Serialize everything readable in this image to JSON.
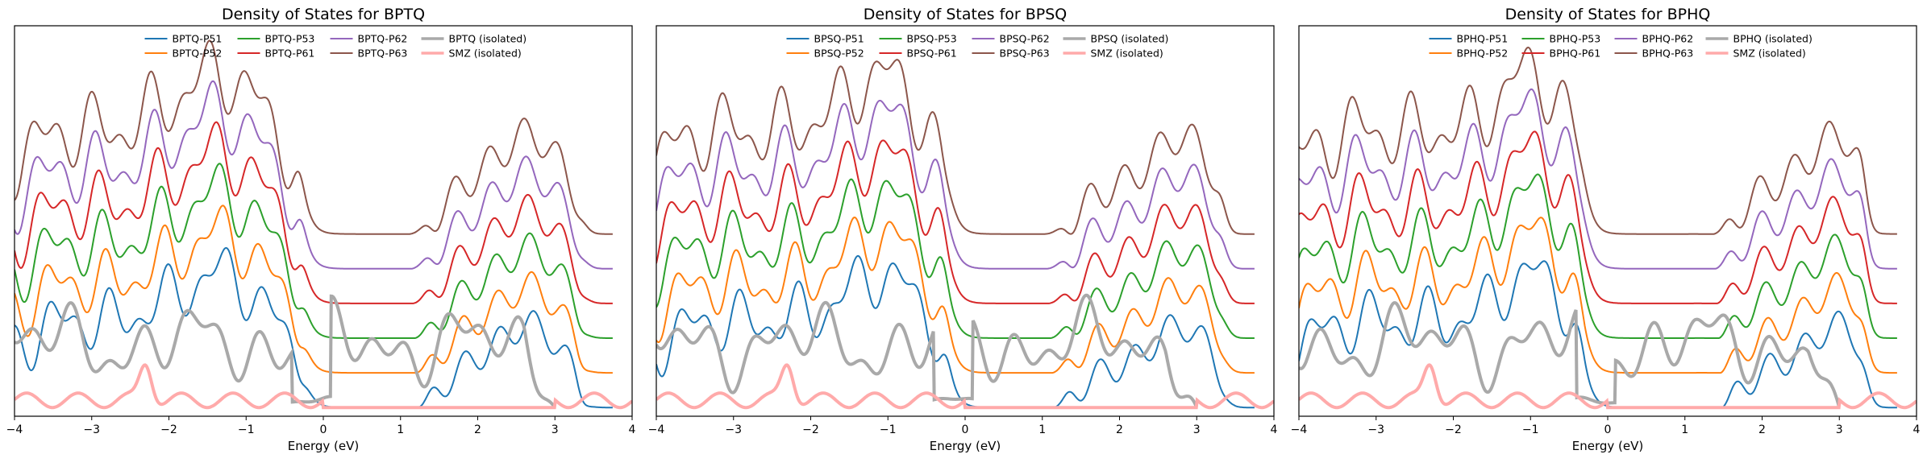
{
  "chart_data": [
    {
      "type": "line",
      "title": "Density of States for BPTQ",
      "xlabel": "Energy (eV)",
      "ylabel": "",
      "xlim": [
        -4,
        4
      ],
      "xticks": [
        "−4",
        "−3",
        "−2",
        "−1",
        "0",
        "1",
        "2",
        "3",
        "4"
      ],
      "grid": false,
      "legend": {
        "location": "upper center",
        "columns": 4
      },
      "offsets": [
        0,
        0.12,
        0.24,
        0.36,
        0.48,
        0.6
      ],
      "series": [
        {
          "name": "BPTQ-P51",
          "color": "#1f77b4"
        },
        {
          "name": "BPTQ-P52",
          "color": "#ff7f0e"
        },
        {
          "name": "BPTQ-P53",
          "color": "#2ca02c"
        },
        {
          "name": "BPTQ-P61",
          "color": "#d62728"
        },
        {
          "name": "BPTQ-P62",
          "color": "#9467bd"
        },
        {
          "name": "BPTQ-P63",
          "color": "#8c564b"
        },
        {
          "name": "BPTQ (isolated)",
          "color": "#a9a9a9"
        },
        {
          "name": "SMZ (isolated)",
          "color": "#ffaaaa"
        }
      ]
    },
    {
      "type": "line",
      "title": "Density of States for BPSQ",
      "xlabel": "Energy (eV)",
      "ylabel": "",
      "xlim": [
        -4,
        4
      ],
      "xticks": [
        "−4",
        "−3",
        "−2",
        "−1",
        "0",
        "1",
        "2",
        "3",
        "4"
      ],
      "grid": false,
      "legend": {
        "location": "upper center",
        "columns": 4
      },
      "offsets": [
        0,
        0.12,
        0.24,
        0.36,
        0.48,
        0.6
      ],
      "series": [
        {
          "name": "BPSQ-P51",
          "color": "#1f77b4"
        },
        {
          "name": "BPSQ-P52",
          "color": "#ff7f0e"
        },
        {
          "name": "BPSQ-P53",
          "color": "#2ca02c"
        },
        {
          "name": "BPSQ-P61",
          "color": "#d62728"
        },
        {
          "name": "BPSQ-P62",
          "color": "#9467bd"
        },
        {
          "name": "BPSQ-P63",
          "color": "#8c564b"
        },
        {
          "name": "BPSQ (isolated)",
          "color": "#a9a9a9"
        },
        {
          "name": "SMZ (isolated)",
          "color": "#ffaaaa"
        }
      ]
    },
    {
      "type": "line",
      "title": "Density of States for BPHQ",
      "xlabel": "Energy (eV)",
      "ylabel": "",
      "xlim": [
        -4,
        4
      ],
      "xticks": [
        "−4",
        "−3",
        "−2",
        "−1",
        "0",
        "1",
        "2",
        "3",
        "4"
      ],
      "grid": false,
      "legend": {
        "location": "upper center",
        "columns": 4
      },
      "offsets": [
        0,
        0.12,
        0.24,
        0.36,
        0.48,
        0.6
      ],
      "series": [
        {
          "name": "BPHQ-P51",
          "color": "#1f77b4"
        },
        {
          "name": "BPHQ-P52",
          "color": "#ff7f0e"
        },
        {
          "name": "BPHQ-P53",
          "color": "#2ca02c"
        },
        {
          "name": "BPHQ-P61",
          "color": "#d62728"
        },
        {
          "name": "BPHQ-P62",
          "color": "#9467bd"
        },
        {
          "name": "BPHQ-P63",
          "color": "#8c564b"
        },
        {
          "name": "BPHQ (isolated)",
          "color": "#a9a9a9"
        },
        {
          "name": "SMZ (isolated)",
          "color": "#ffaaaa"
        }
      ]
    }
  ]
}
